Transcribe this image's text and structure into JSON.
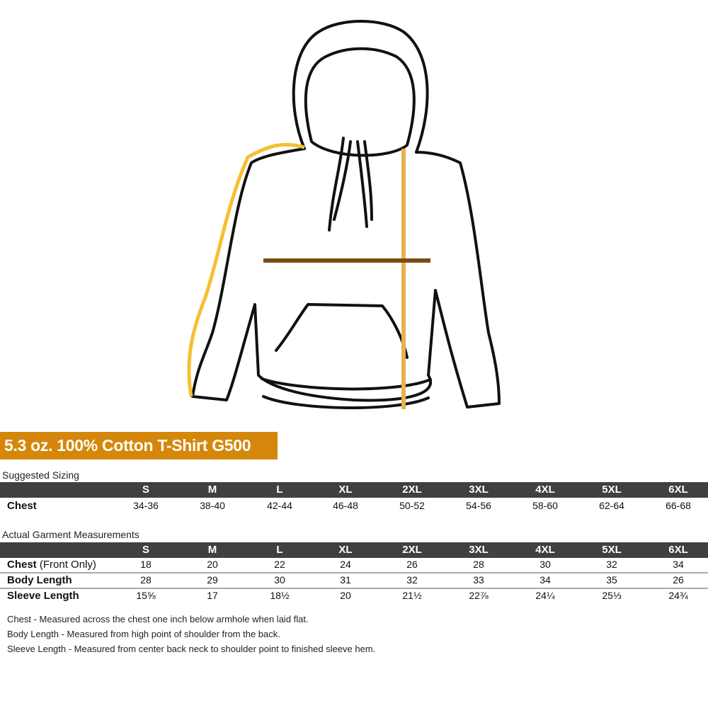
{
  "title": "5.3 oz. 100% Cotton T-Shirt G500",
  "colors": {
    "title_bg": "#d4870a",
    "header_bg": "#404040",
    "sleeve_line": "#f5c030",
    "body_line": "#e8b050",
    "chest_line": "#7a4c10"
  },
  "sizes": [
    "S",
    "M",
    "L",
    "XL",
    "2XL",
    "3XL",
    "4XL",
    "5XL",
    "6XL"
  ],
  "suggested": {
    "caption": "Suggested Sizing",
    "rows": [
      {
        "label": "Chest",
        "values": [
          "34-36",
          "38-40",
          "42-44",
          "46-48",
          "50-52",
          "54-56",
          "58-60",
          "62-64",
          "66-68"
        ]
      }
    ]
  },
  "actual": {
    "caption": "Actual Garment Measurements",
    "rows": [
      {
        "label": "Chest",
        "sub": " (Front Only)",
        "values": [
          "18",
          "20",
          "22",
          "24",
          "26",
          "28",
          "30",
          "32",
          "34"
        ]
      },
      {
        "label": "Body Length",
        "sub": "",
        "values": [
          "28",
          "29",
          "30",
          "31",
          "32",
          "33",
          "34",
          "35",
          "26"
        ]
      },
      {
        "label": "Sleeve Length",
        "sub": "",
        "values": [
          "15⅝",
          "17",
          "18½",
          "20",
          "21½",
          "22⅞",
          "24¼",
          "25⅓",
          "24¾"
        ]
      }
    ]
  },
  "notes": [
    "Chest - Measured across the chest one inch below armhole when laid flat.",
    "Body Length - Measured from high point of shoulder from the back.",
    "Sleeve Length - Measured from center back neck to shoulder point to finished sleeve hem."
  ]
}
